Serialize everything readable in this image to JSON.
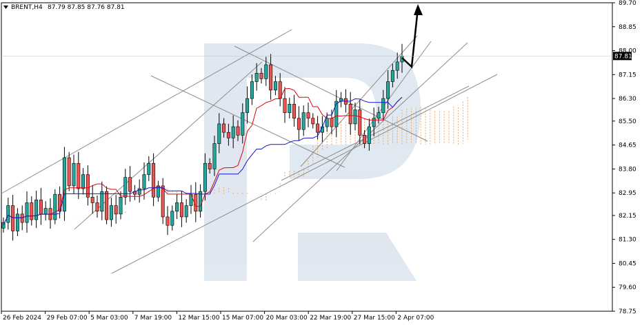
{
  "header": {
    "symbol": "BRENT,H4",
    "ohlc": "87.79 87.85 87.76 87.81"
  },
  "colors": {
    "background": "#ffffff",
    "candle_bull": "#26a69a",
    "candle_bear": "#ef5350",
    "outline": "#000000",
    "tenkan": "#e3000f",
    "kijun": "#1515c9",
    "cloud": "#f2a35b",
    "cloud_bearish": "#c8a8d8",
    "trendline": "#8c8c8c",
    "arrow": "#000000",
    "watermark": "#dde5ef"
  },
  "chart_data": {
    "type": "candlestick",
    "title": "BRENT,H4",
    "ylim": [
      78.75,
      89.7
    ],
    "y_ticks": [
      "89.70",
      "88.85",
      "88.00",
      "87.15",
      "86.30",
      "85.50",
      "84.65",
      "83.80",
      "82.95",
      "82.15",
      "81.30",
      "80.45",
      "79.60",
      "78.75"
    ],
    "x_ticks": [
      "26 Feb 2024",
      "29 Feb 07:00",
      "5 Mar 03:00",
      "7 Mar 19:00",
      "12 Mar 15:00",
      "15 Mar 07:00",
      "20 Mar 03:00",
      "22 Mar 19:00",
      "27 Mar 15:00",
      "2 Apr 07:00"
    ],
    "current_price": "87.81",
    "price_path": [
      81.9,
      82.5,
      81.6,
      82.2,
      81.9,
      82.6,
      82.0,
      82.7,
      82.2,
      82.4,
      82.0,
      82.9,
      82.3,
      84.2,
      83.2,
      84.0,
      83.1,
      83.6,
      82.8,
      82.6,
      82.3,
      83.0,
      82.0,
      82.5,
      82.2,
      82.8,
      83.5,
      83.0,
      82.9,
      83.1,
      83.6,
      84.0,
      82.8,
      83.2,
      82.1,
      81.8,
      82.3,
      82.6,
      82.1,
      82.5,
      82.9,
      82.3,
      83.0,
      84.0,
      83.8,
      84.7,
      85.4,
      85.1,
      84.9,
      85.3,
      85.0,
      85.8,
      86.3,
      86.9,
      87.2,
      87.0,
      87.5,
      86.6,
      86.9,
      86.3,
      85.8,
      86.1,
      85.6,
      85.2,
      85.8,
      85.6,
      85.4,
      85.1,
      85.3,
      85.6,
      85.3,
      86.2,
      86.3,
      86.1,
      85.4,
      85.9,
      85.0,
      84.7,
      85.3,
      85.6,
      85.8,
      86.3,
      86.9,
      87.3,
      87.6,
      87.81
    ],
    "annotations": [
      "ascending channel",
      "descending channel",
      "fan lines",
      "arrow up"
    ]
  }
}
